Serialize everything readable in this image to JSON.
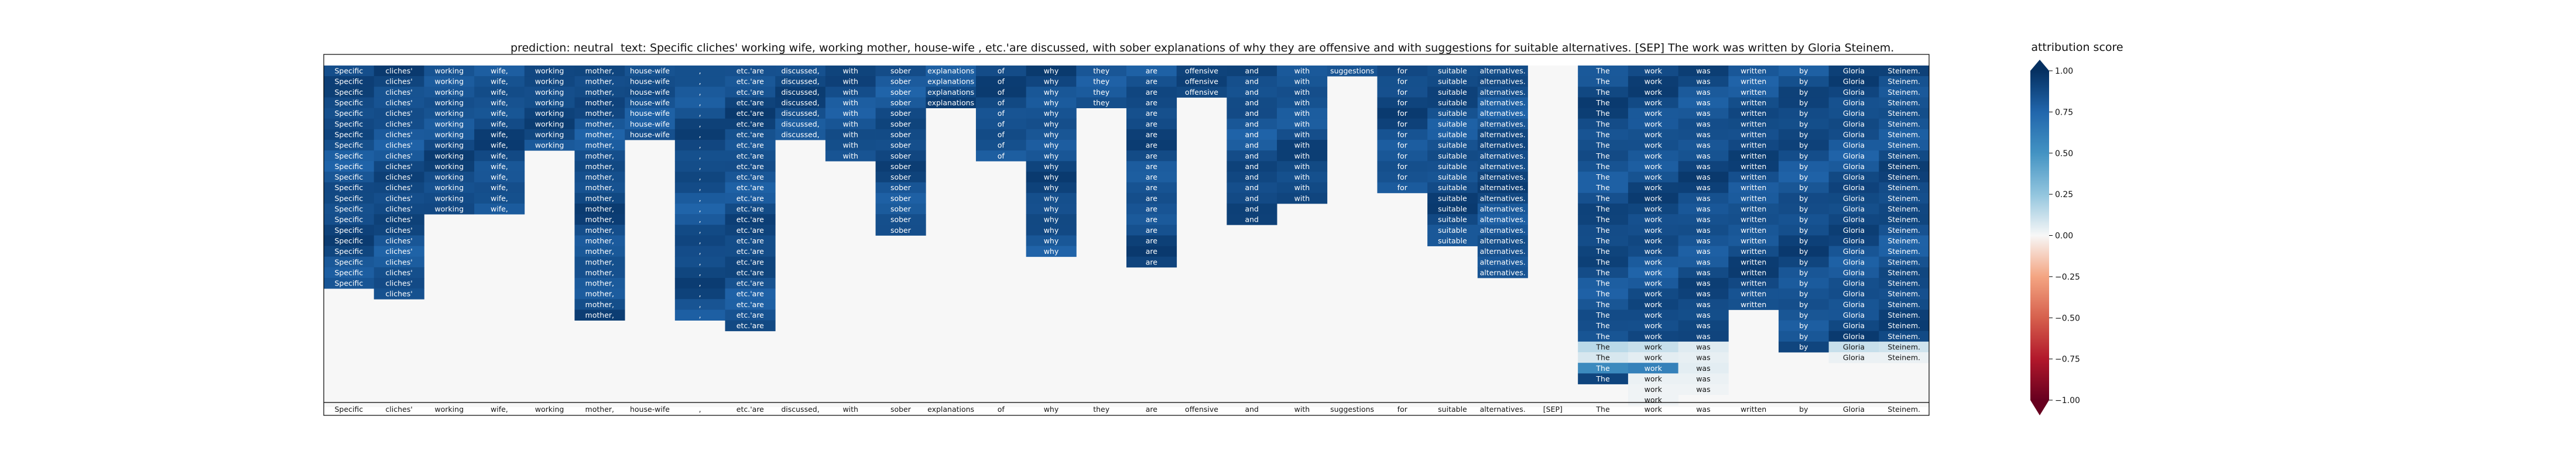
{
  "chart_data": {
    "type": "heatmap",
    "title_prediction": "prediction:  neutral",
    "title_text": "text:  Specific cliches' working wife, working mother, house-wife , etc.'are discussed, with sober explanations of why they are offensive and with suggestions for suitable alternatives. [SEP] The work was written by Gloria Steinem.",
    "tokens": [
      "Specific",
      "cliches'",
      "working",
      "wife,",
      "working",
      "mother,",
      "house-wife",
      ",",
      "etc.'are",
      "discussed,",
      "with",
      "sober",
      "explanations",
      "of",
      "why",
      "they",
      "are",
      "offensive",
      "and",
      "with",
      "suggestions",
      "for",
      "suitable",
      "alternatives.",
      "[SEP]",
      "The",
      "work",
      "was",
      "written",
      "by",
      "Gloria",
      "Steinem."
    ],
    "column_depths": [
      21,
      22,
      14,
      14,
      8,
      24,
      7,
      24,
      25,
      7,
      9,
      16,
      4,
      9,
      18,
      4,
      19,
      3,
      15,
      13,
      1,
      12,
      17,
      20,
      0,
      30,
      32,
      31,
      23,
      27,
      28,
      28
    ],
    "shaded_cells": [
      {
        "col": 25,
        "row": 26,
        "score": 0.15
      },
      {
        "col": 25,
        "row": 27,
        "score": 0.08
      },
      {
        "col": 25,
        "row": 28,
        "score": 0.55
      },
      {
        "col": 26,
        "row": 26,
        "score": 0.12
      },
      {
        "col": 26,
        "row": 27,
        "score": 0.05
      },
      {
        "col": 26,
        "row": 28,
        "score": 0.6
      },
      {
        "col": 26,
        "row": 29,
        "score": 0.03
      },
      {
        "col": 26,
        "row": 30,
        "score": 0.02
      },
      {
        "col": 26,
        "row": 31,
        "score": 0.02
      },
      {
        "col": 27,
        "row": 26,
        "score": 0.06
      },
      {
        "col": 27,
        "row": 27,
        "score": 0.04
      },
      {
        "col": 27,
        "row": 28,
        "score": 0.05
      },
      {
        "col": 27,
        "row": 29,
        "score": 0.03
      },
      {
        "col": 27,
        "row": 30,
        "score": 0.02
      },
      {
        "col": 30,
        "row": 26,
        "score": 0.12
      },
      {
        "col": 30,
        "row": 27,
        "score": 0.03
      },
      {
        "col": 31,
        "row": 26,
        "score": 0.1
      },
      {
        "col": 31,
        "row": 27,
        "score": 0.03
      }
    ],
    "colorbar": {
      "label": "attribution score",
      "ticks": [
        "1.00",
        "0.75",
        "0.50",
        "0.25",
        "0.00",
        "−0.25",
        "−0.50",
        "−0.75",
        "−1.00"
      ],
      "range": [
        -1,
        1
      ],
      "colormap": "RdBu"
    }
  }
}
